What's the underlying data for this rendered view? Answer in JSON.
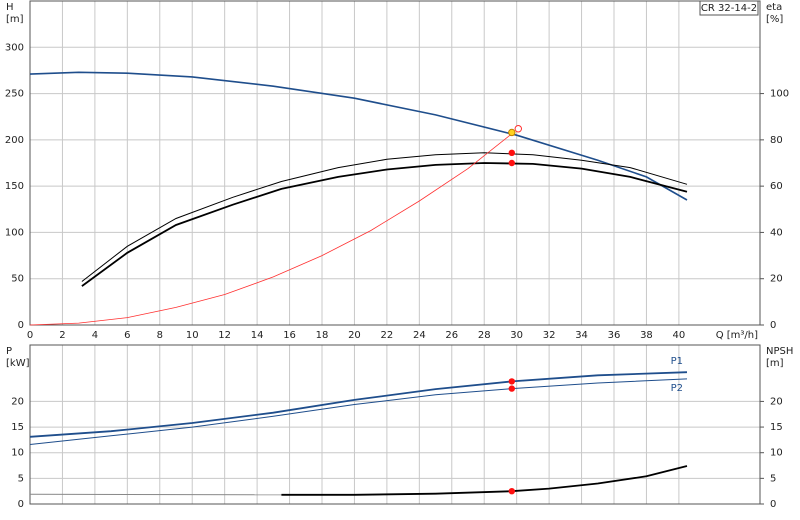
{
  "chart_data": [
    {
      "type": "line",
      "annotation": "CR 32-14-2",
      "ylabel": "H",
      "yunit": "[m]",
      "y2label": "eta",
      "y2unit": "[%]",
      "xlabel": "Q [m³/h]",
      "xlim": [
        0,
        45
      ],
      "xticks": [
        0,
        2,
        4,
        6,
        8,
        10,
        12,
        14,
        16,
        18,
        20,
        22,
        24,
        26,
        28,
        30,
        32,
        34,
        36,
        38,
        40
      ],
      "show_xtick_labels": true,
      "ylim": [
        0,
        350
      ],
      "yticks": [
        0,
        50,
        100,
        150,
        200,
        250,
        300
      ],
      "y2lim": [
        0,
        140
      ],
      "y2ticks": [
        0,
        20,
        40,
        60,
        80,
        100
      ],
      "grid": true,
      "series": [
        {
          "color": "#1f4e8c",
          "width": 1.6,
          "x": [
            0,
            3,
            6,
            10,
            15,
            20,
            25,
            30,
            35,
            38,
            40.5
          ],
          "values": [
            271,
            273,
            272,
            268,
            258,
            245,
            227,
            205,
            178,
            160,
            135
          ]
        },
        {
          "color": "#000000",
          "width": 1,
          "axis": "y2",
          "x": [
            3.2,
            6,
            9,
            12.5,
            15.5,
            19,
            22,
            25,
            28,
            31,
            34,
            37,
            40.5
          ],
          "values": [
            18.8,
            34,
            46,
            55.2,
            62,
            68,
            71.6,
            73.6,
            74.4,
            73.6,
            71.2,
            68,
            60.8
          ]
        },
        {
          "color": "#000000",
          "width": 1.8,
          "axis": "y2",
          "x": [
            3.2,
            6,
            9,
            12.5,
            15.5,
            19,
            22,
            25,
            28,
            31,
            34,
            37,
            40.5
          ],
          "values": [
            16.8,
            31.2,
            43.2,
            52,
            58.8,
            64,
            67.2,
            69.2,
            70,
            69.6,
            67.6,
            64,
            57.6
          ]
        },
        {
          "color": "#ff3030",
          "width": 0.8,
          "x": [
            0,
            3,
            6,
            9,
            12,
            15,
            18,
            21,
            24,
            27,
            29.8
          ],
          "values": [
            0,
            2,
            8,
            19,
            33,
            52,
            75,
            102,
            134,
            169,
            208
          ]
        },
        {
          "color": "#ff3030",
          "marker": "open",
          "x": [
            30.1
          ],
          "values": [
            212
          ]
        },
        {
          "color": "#ffd21f",
          "marker": "dot",
          "x": [
            29.7
          ],
          "values": [
            208
          ]
        },
        {
          "color": "#ff1010",
          "marker": "dot",
          "axis": "y2",
          "x": [
            29.7,
            29.7
          ],
          "values": [
            74.4,
            70
          ]
        }
      ]
    },
    {
      "type": "line",
      "ylabel": "P",
      "yunit": "[kW]",
      "y2label": "NPSH",
      "y2unit": "[m]",
      "xlim": [
        0,
        45
      ],
      "xticks": [
        0,
        2,
        4,
        6,
        8,
        10,
        12,
        14,
        16,
        18,
        20,
        22,
        24,
        26,
        28,
        30,
        32,
        34,
        36,
        38,
        40
      ],
      "show_xtick_labels": false,
      "ylim": [
        0,
        31
      ],
      "yticks": [
        0,
        5,
        10,
        15,
        20
      ],
      "y2lim": [
        0,
        31
      ],
      "y2ticks": [
        0,
        5,
        10,
        15,
        20
      ],
      "grid": true,
      "legend": "line-end",
      "series": [
        {
          "name": "P1",
          "color": "#1f4e8c",
          "width": 1.8,
          "x": [
            0,
            5,
            10,
            15,
            20,
            25,
            29.7,
            35,
            40.5
          ],
          "values": [
            13.1,
            14.2,
            15.8,
            17.8,
            20.3,
            22.4,
            23.9,
            25.1,
            25.7
          ]
        },
        {
          "name": "P2",
          "color": "#1f4e8c",
          "width": 1,
          "x": [
            0,
            5,
            10,
            15,
            20,
            25,
            29.7,
            35,
            40.5
          ],
          "values": [
            11.6,
            13.3,
            15,
            17.1,
            19.4,
            21.3,
            22.5,
            23.6,
            24.4
          ]
        },
        {
          "color": "#888888",
          "width": 1,
          "axis": "y2",
          "x": [
            0,
            15.5
          ],
          "values": [
            1.9,
            1.8
          ]
        },
        {
          "color": "#000000",
          "width": 1.8,
          "axis": "y2",
          "x": [
            15.5,
            20,
            25,
            29.7,
            32,
            35,
            38,
            40.5
          ],
          "values": [
            1.8,
            1.8,
            2,
            2.5,
            3,
            4,
            5.4,
            7.4
          ]
        },
        {
          "color": "#ff1010",
          "marker": "dot",
          "x": [
            29.7,
            29.7
          ],
          "values": [
            23.9,
            22.5
          ]
        },
        {
          "color": "#ff1010",
          "marker": "dot",
          "axis": "y2",
          "x": [
            29.7
          ],
          "values": [
            2.5
          ]
        }
      ]
    }
  ]
}
